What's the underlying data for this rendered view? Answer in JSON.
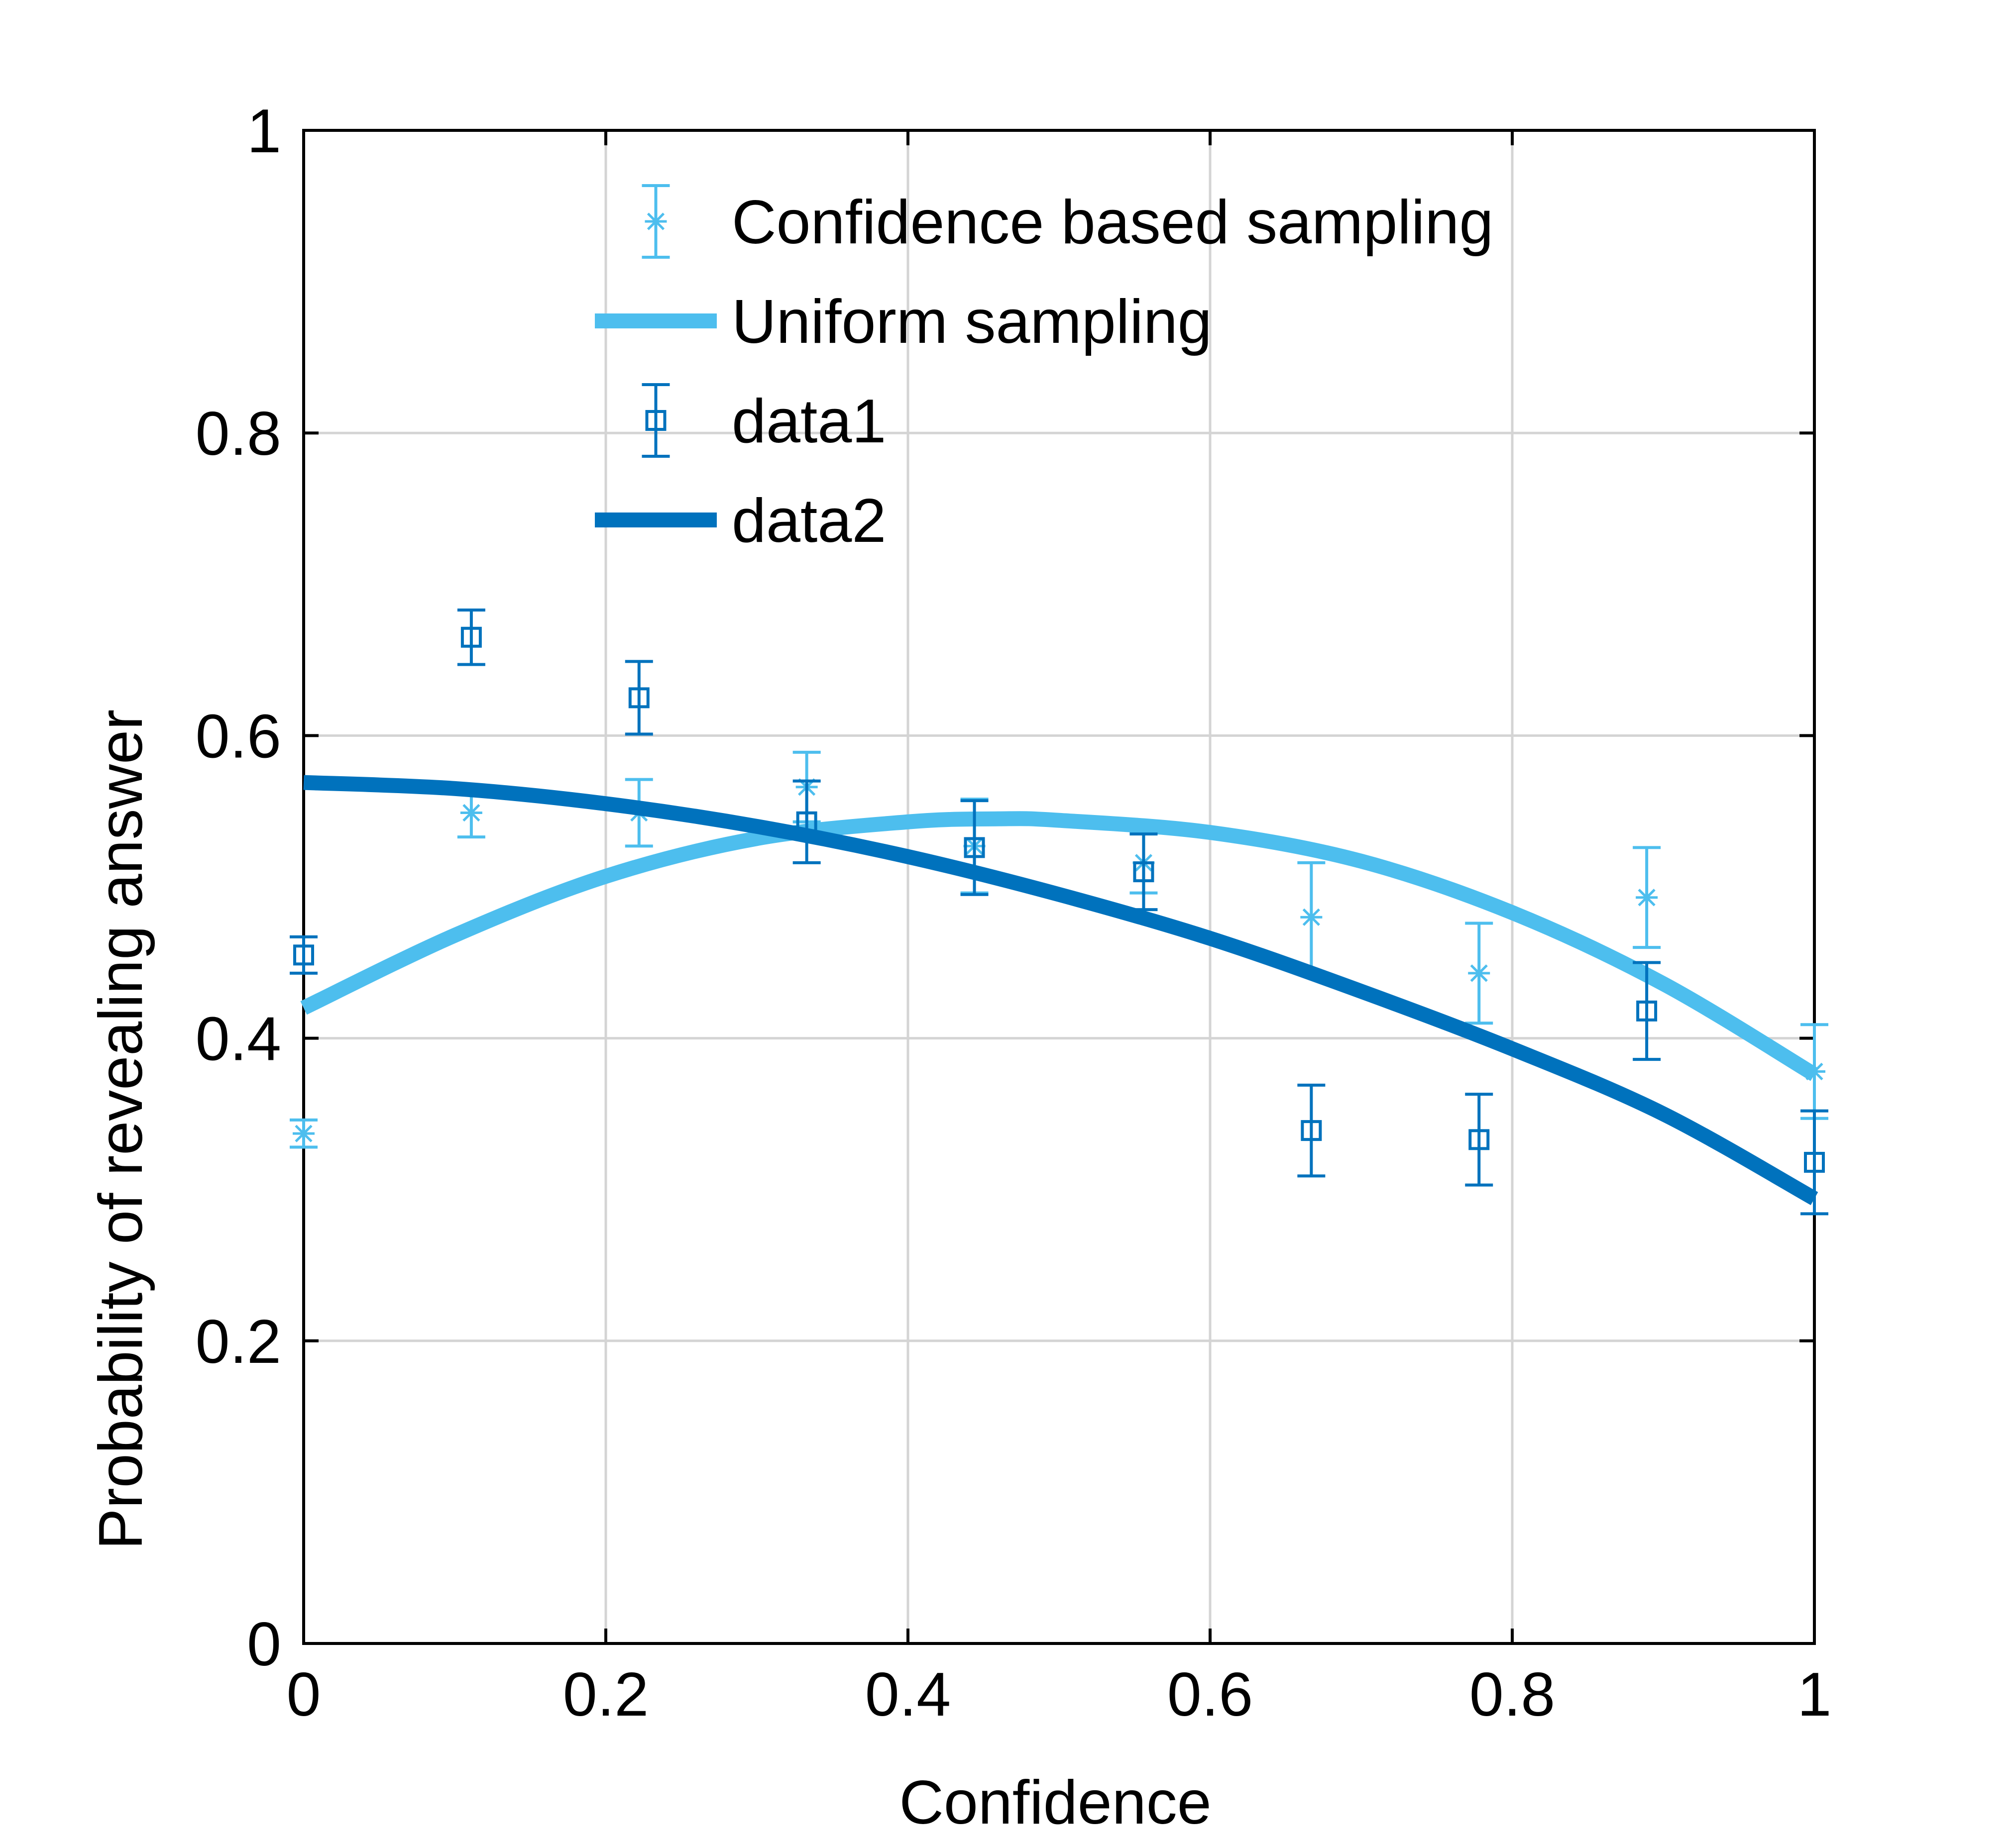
{
  "chart_data": {
    "type": "scatter",
    "xlabel": "Confidence",
    "ylabel": "Probability of revealing answer",
    "xlim": [
      0,
      1
    ],
    "ylim": [
      0,
      1
    ],
    "xticks": [
      0,
      0.2,
      0.4,
      0.6,
      0.8,
      1
    ],
    "yticks": [
      0,
      0.2,
      0.4,
      0.6,
      0.8,
      1
    ],
    "xtick_labels": [
      "0",
      "0.2",
      "0.4",
      "0.6",
      "0.8",
      "1"
    ],
    "ytick_labels": [
      "0",
      "0.2",
      "0.4",
      "0.6",
      "0.8",
      "1"
    ],
    "grid": true,
    "legend_position": "top-right",
    "series": [
      {
        "name": "Confidence based sampling",
        "kind": "errorbar",
        "marker": "asterisk",
        "color": "#4dbeee",
        "x": [
          0,
          0.111,
          0.222,
          0.333,
          0.444,
          0.556,
          0.667,
          0.778,
          0.889,
          1
        ],
        "y": [
          0.337,
          0.549,
          0.549,
          0.566,
          0.527,
          0.516,
          0.48,
          0.443,
          0.493,
          0.378
        ],
        "err": [
          0.009,
          0.016,
          0.022,
          0.023,
          0.031,
          0.02,
          0.036,
          0.033,
          0.033,
          0.031
        ]
      },
      {
        "name": "Uniform sampling",
        "kind": "line",
        "color": "#4dbeee",
        "x": [
          0,
          0.1,
          0.2,
          0.3,
          0.4,
          0.46,
          0.5,
          0.6,
          0.7,
          0.8,
          0.9,
          1
        ],
        "y": [
          0.42,
          0.468,
          0.507,
          0.532,
          0.543,
          0.545,
          0.544,
          0.536,
          0.517,
          0.483,
          0.436,
          0.376
        ]
      },
      {
        "name": "data1",
        "kind": "errorbar",
        "marker": "square",
        "color": "#0072bd",
        "x": [
          0,
          0.111,
          0.222,
          0.333,
          0.444,
          0.556,
          0.667,
          0.778,
          0.889,
          1
        ],
        "y": [
          0.455,
          0.665,
          0.625,
          0.543,
          0.526,
          0.51,
          0.339,
          0.333,
          0.418,
          0.318
        ],
        "err": [
          0.012,
          0.018,
          0.024,
          0.027,
          0.031,
          0.025,
          0.03,
          0.03,
          0.032,
          0.034
        ]
      },
      {
        "name": "data2",
        "kind": "line",
        "color": "#0072bd",
        "x": [
          0,
          0.1,
          0.2,
          0.3,
          0.4,
          0.5,
          0.6,
          0.7,
          0.8,
          0.9,
          1
        ],
        "y": [
          0.569,
          0.565,
          0.555,
          0.54,
          0.52,
          0.495,
          0.466,
          0.431,
          0.393,
          0.35,
          0.294
        ]
      }
    ]
  }
}
